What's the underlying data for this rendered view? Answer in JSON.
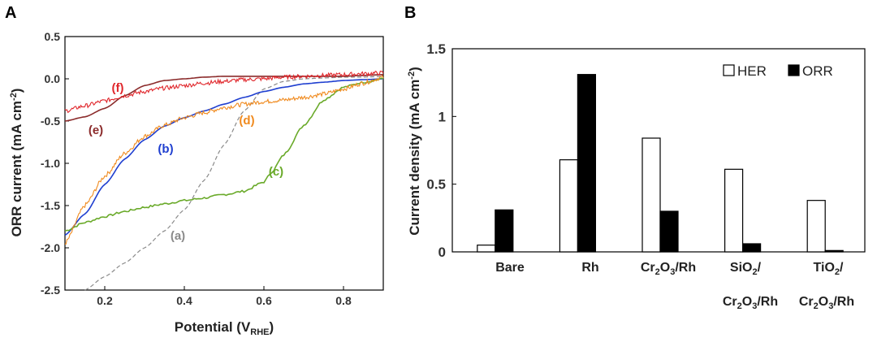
{
  "chart_data": [
    {
      "panel": "A",
      "type": "line",
      "xlabel": "Potential (V",
      "xlabel_sub": "RHE",
      "xlabel_close": ")",
      "ylabel": "ORR current (mA cm",
      "ylabel_sup": "-2",
      "ylabel_close": ")",
      "xlim": [
        0.1,
        0.9
      ],
      "ylim": [
        -2.5,
        0.5
      ],
      "xticks": [
        "0.2",
        "0.4",
        "0.6",
        "0.8"
      ],
      "xtick_values": [
        0.2,
        0.4,
        0.6,
        0.8
      ],
      "yticks": [
        "0.5",
        "0.0",
        "-0.5",
        "-1.0",
        "-1.5",
        "-2.0",
        "-2.5"
      ],
      "ytick_values": [
        0.5,
        0.0,
        -0.5,
        -1.0,
        -1.5,
        -2.0,
        -2.5
      ],
      "series": [
        {
          "name": "(a)",
          "color": "#8a8a8a",
          "style": "dashed",
          "x": [
            0.15,
            0.2,
            0.25,
            0.3,
            0.35,
            0.4,
            0.45,
            0.5,
            0.55,
            0.6,
            0.65,
            0.7,
            0.75,
            0.8,
            0.85,
            0.9
          ],
          "y": [
            -2.5,
            -2.34,
            -2.18,
            -2.0,
            -1.8,
            -1.55,
            -1.2,
            -0.78,
            -0.38,
            -0.12,
            -0.03,
            0.0,
            0.01,
            0.02,
            0.02,
            0.03
          ]
        },
        {
          "name": "(b)",
          "color": "#1f3fd0",
          "style": "solid",
          "x": [
            0.1,
            0.15,
            0.2,
            0.25,
            0.3,
            0.35,
            0.4,
            0.45,
            0.5,
            0.55,
            0.6,
            0.65,
            0.7,
            0.75,
            0.8,
            0.85,
            0.9
          ],
          "y": [
            -1.85,
            -1.6,
            -1.25,
            -0.95,
            -0.72,
            -0.56,
            -0.46,
            -0.38,
            -0.3,
            -0.22,
            -0.15,
            -0.1,
            -0.06,
            -0.04,
            -0.02,
            -0.01,
            0.0
          ]
        },
        {
          "name": "(c)",
          "color": "#6aaa2a",
          "style": "solid",
          "x": [
            0.1,
            0.15,
            0.2,
            0.25,
            0.3,
            0.35,
            0.4,
            0.45,
            0.5,
            0.55,
            0.6,
            0.62,
            0.65,
            0.7,
            0.75,
            0.8,
            0.85,
            0.9
          ],
          "y": [
            -1.8,
            -1.7,
            -1.63,
            -1.57,
            -1.52,
            -1.48,
            -1.44,
            -1.41,
            -1.37,
            -1.33,
            -1.22,
            -1.1,
            -0.9,
            -0.55,
            -0.25,
            -0.1,
            -0.04,
            0.0
          ]
        },
        {
          "name": "(d)",
          "color": "#f08a1e",
          "style": "noisy",
          "x": [
            0.1,
            0.15,
            0.2,
            0.25,
            0.3,
            0.35,
            0.4,
            0.45,
            0.5,
            0.55,
            0.6,
            0.65,
            0.7,
            0.75,
            0.8,
            0.85,
            0.9
          ],
          "y": [
            -1.95,
            -1.5,
            -1.15,
            -0.88,
            -0.68,
            -0.55,
            -0.46,
            -0.4,
            -0.34,
            -0.3,
            -0.27,
            -0.25,
            -0.22,
            -0.18,
            -0.12,
            -0.05,
            0.02
          ]
        },
        {
          "name": "(e)",
          "color": "#8b2b2b",
          "style": "solid",
          "x": [
            0.1,
            0.15,
            0.2,
            0.25,
            0.3,
            0.35,
            0.4,
            0.45,
            0.5,
            0.55,
            0.6,
            0.65,
            0.7,
            0.75,
            0.8,
            0.85,
            0.9
          ],
          "y": [
            -0.5,
            -0.45,
            -0.35,
            -0.2,
            -0.08,
            -0.02,
            0.0,
            0.02,
            0.03,
            0.03,
            0.03,
            0.03,
            0.03,
            0.03,
            0.03,
            0.04,
            0.05
          ]
        },
        {
          "name": "(f)",
          "color": "#e0262b",
          "style": "noisy",
          "x": [
            0.1,
            0.15,
            0.2,
            0.25,
            0.3,
            0.35,
            0.4,
            0.45,
            0.5,
            0.55,
            0.6,
            0.65,
            0.7,
            0.75,
            0.8,
            0.85,
            0.9
          ],
          "y": [
            -0.38,
            -0.32,
            -0.26,
            -0.2,
            -0.15,
            -0.11,
            -0.08,
            -0.05,
            -0.03,
            -0.01,
            0.0,
            0.02,
            0.03,
            0.04,
            0.05,
            0.06,
            0.07
          ]
        }
      ]
    },
    {
      "panel": "B",
      "type": "bar",
      "ylabel": "Current density (mA cm",
      "ylabel_sup": "-2",
      "ylabel_close": ")",
      "ylim": [
        0,
        1.5
      ],
      "yticks": [
        "0",
        "0.5",
        "1",
        "1.5"
      ],
      "ytick_values": [
        0,
        0.5,
        1,
        1.5
      ],
      "categories": [
        "Bare",
        "Rh",
        "Cr2O3/Rh",
        "SiO2/Cr2O3/Rh",
        "TiO2/Cr2O3/Rh"
      ],
      "series": [
        {
          "name": "HER",
          "color": "#ffffff",
          "values": [
            0.05,
            0.68,
            0.84,
            0.61,
            0.38
          ]
        },
        {
          "name": "ORR",
          "color": "#000000",
          "values": [
            0.31,
            1.31,
            0.3,
            0.06,
            0.01
          ]
        }
      ],
      "legend_position": "top-right"
    }
  ],
  "labels": {
    "panel_a": "A",
    "panel_b": "B",
    "cat_bare": "Bare",
    "cat_rh": "Rh",
    "cat_cr2o3rh_1": "Cr",
    "cat_cr2o3rh_2": "2",
    "cat_cr2o3rh_3": "O",
    "cat_cr2o3rh_4": "3",
    "cat_cr2o3rh_5": "/Rh",
    "sio2_line1_a": "SiO",
    "sio2_line1_b": "2",
    "sio2_line1_c": "/",
    "tio2_line1_a": "TiO",
    "tio2_line1_b": "2",
    "tio2_line1_c": "/"
  }
}
